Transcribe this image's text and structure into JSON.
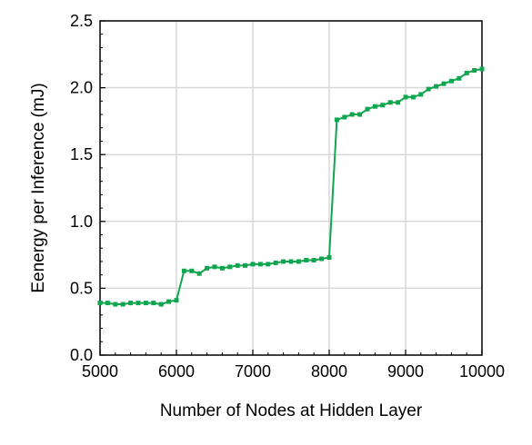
{
  "chart_data": {
    "type": "line",
    "xlabel": "Number of Nodes at Hidden Layer",
    "ylabel": "Eenergy per Inference (mJ)",
    "xlim": [
      5000,
      10000
    ],
    "ylim": [
      0,
      2.5
    ],
    "xticks": [
      5000,
      6000,
      7000,
      8000,
      9000,
      10000
    ],
    "yticks": [
      0.0,
      0.5,
      1.0,
      1.5,
      2.0,
      2.5
    ],
    "xtick_labels": [
      "5000",
      "6000",
      "7000",
      "8000",
      "9000",
      "10000"
    ],
    "ytick_labels": [
      "0.0",
      "0.5",
      "1.0",
      "1.5",
      "2.0",
      "2.5"
    ],
    "grid": true,
    "series": [
      {
        "color": "#10a650",
        "marker": "square",
        "x": [
          5000,
          5100,
          5200,
          5300,
          5400,
          5500,
          5600,
          5700,
          5800,
          5900,
          6000,
          6100,
          6200,
          6300,
          6400,
          6500,
          6600,
          6700,
          6800,
          6900,
          7000,
          7100,
          7200,
          7300,
          7400,
          7500,
          7600,
          7700,
          7800,
          7900,
          8000,
          8100,
          8200,
          8300,
          8400,
          8500,
          8600,
          8700,
          8800,
          8900,
          9000,
          9100,
          9200,
          9300,
          9400,
          9500,
          9600,
          9700,
          9800,
          9900,
          10000
        ],
        "y": [
          0.39,
          0.39,
          0.38,
          0.38,
          0.39,
          0.39,
          0.39,
          0.39,
          0.38,
          0.4,
          0.41,
          0.63,
          0.63,
          0.61,
          0.65,
          0.66,
          0.65,
          0.66,
          0.67,
          0.67,
          0.68,
          0.68,
          0.68,
          0.69,
          0.7,
          0.7,
          0.7,
          0.71,
          0.71,
          0.72,
          0.73,
          1.76,
          1.78,
          1.8,
          1.8,
          1.84,
          1.86,
          1.87,
          1.89,
          1.89,
          1.93,
          1.93,
          1.95,
          1.99,
          2.01,
          2.03,
          2.05,
          2.07,
          2.11,
          2.13,
          2.14
        ]
      }
    ]
  }
}
